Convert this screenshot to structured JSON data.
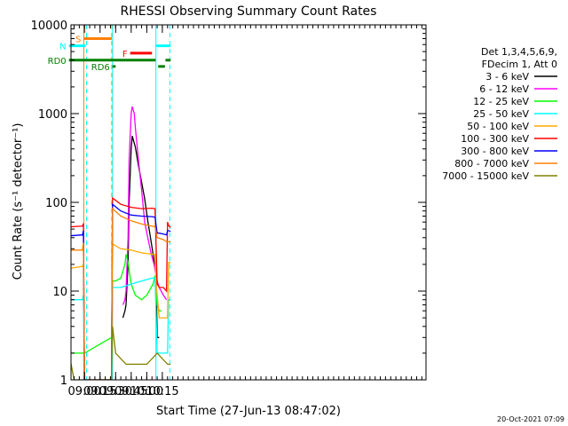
{
  "chart_data": {
    "type": "line",
    "title": "RHESSI Observing Summary Count Rates",
    "xlabel": "Start Time (27-Jun-13 08:47:02)",
    "ylabel": "Count Rate (s⁻¹ detector⁻¹)",
    "yscale": "log",
    "xlim_minutes": [
      527,
      869
    ],
    "ylim": [
      1,
      10000
    ],
    "x_ticks": [
      {
        "t": 540,
        "label": "09:00"
      },
      {
        "t": 555,
        "label": "09:15"
      },
      {
        "t": 570,
        "label": "09:30"
      },
      {
        "t": 585,
        "label": "09:45"
      },
      {
        "t": 600,
        "label": "10:00"
      },
      {
        "t": 615,
        "label": "10:15"
      }
    ],
    "y_ticks": [
      {
        "v": 1,
        "label": "1"
      },
      {
        "v": 10,
        "label": "10"
      },
      {
        "v": 100,
        "label": "100"
      },
      {
        "v": 1000,
        "label": "1000"
      },
      {
        "v": 10000,
        "label": "10000"
      }
    ],
    "legend_header": [
      "Det 1,3,4,5,6,9,",
      "FDecim 1, Att 0"
    ],
    "legend_position": "right",
    "series": [
      {
        "name": "3 - 6 keV",
        "color": "#000000",
        "points": [
          [
            577,
            5
          ],
          [
            579,
            6
          ],
          [
            580,
            7
          ],
          [
            582,
            20
          ],
          [
            583,
            100
          ],
          [
            585,
            400
          ],
          [
            586,
            560
          ],
          [
            589,
            420
          ],
          [
            592,
            260
          ],
          [
            595,
            170
          ],
          [
            598,
            110
          ],
          [
            601,
            62
          ],
          [
            604,
            37
          ],
          [
            607,
            22
          ],
          [
            609,
            15
          ],
          [
            610,
            3
          ],
          [
            612,
            3
          ]
        ]
      },
      {
        "name": "6 - 12 keV",
        "color": "#ff00ff",
        "points": [
          [
            577,
            7
          ],
          [
            579,
            8
          ],
          [
            580,
            10
          ],
          [
            582,
            40
          ],
          [
            583,
            300
          ],
          [
            585,
            1000
          ],
          [
            586,
            1200
          ],
          [
            588,
            1000
          ],
          [
            589,
            700
          ],
          [
            592,
            300
          ],
          [
            595,
            140
          ],
          [
            598,
            60
          ],
          [
            601,
            40
          ],
          [
            604,
            27
          ],
          [
            607,
            20
          ],
          [
            609,
            15
          ],
          [
            610,
            13
          ],
          [
            612,
            11
          ],
          [
            616,
            9
          ],
          [
            619,
            8
          ]
        ]
      },
      {
        "name": "12 - 25 keV",
        "color": "#00ff00",
        "points": [
          [
            525,
            2
          ],
          [
            540,
            2
          ],
          [
            566,
            3
          ],
          [
            567,
            13
          ],
          [
            570,
            13
          ],
          [
            575,
            14
          ],
          [
            579,
            20
          ],
          [
            580,
            26
          ],
          [
            582,
            21
          ],
          [
            585,
            12
          ],
          [
            589,
            9
          ],
          [
            595,
            8
          ],
          [
            600,
            9
          ],
          [
            606,
            12
          ],
          [
            608,
            15
          ],
          [
            610,
            7
          ],
          [
            612,
            6
          ],
          [
            614,
            6
          ]
        ]
      },
      {
        "name": "25 - 50 keV",
        "color": "#00ffff",
        "points": [
          [
            525,
            8
          ],
          [
            538,
            8
          ],
          [
            539,
            9
          ],
          [
            540,
            1
          ],
          [
            566,
            1
          ],
          [
            567,
            11
          ],
          [
            570,
            11
          ],
          [
            575,
            11
          ],
          [
            585,
            12
          ],
          [
            595,
            13
          ],
          [
            605,
            14
          ],
          [
            608,
            14
          ],
          [
            610,
            2
          ],
          [
            612,
            2
          ],
          [
            620,
            2
          ],
          [
            621,
            8
          ],
          [
            623,
            8
          ]
        ]
      },
      {
        "name": "50 - 100 keV",
        "color": "#ffaa00",
        "points": [
          [
            525,
            18
          ],
          [
            538,
            19
          ],
          [
            539,
            20
          ],
          [
            540,
            1
          ],
          [
            566,
            1
          ],
          [
            567,
            34
          ],
          [
            575,
            30
          ],
          [
            585,
            29
          ],
          [
            595,
            27
          ],
          [
            605,
            26
          ],
          [
            608,
            26
          ],
          [
            609,
            12
          ],
          [
            612,
            5
          ],
          [
            615,
            5
          ],
          [
            617,
            5
          ],
          [
            619,
            5
          ],
          [
            620,
            5
          ],
          [
            621,
            21
          ],
          [
            623,
            21
          ]
        ]
      },
      {
        "name": "100 - 300 keV",
        "color": "#ff0000",
        "points": [
          [
            525,
            53
          ],
          [
            538,
            54
          ],
          [
            539,
            58
          ],
          [
            540,
            1
          ],
          [
            566,
            1
          ],
          [
            567,
            112
          ],
          [
            575,
            95
          ],
          [
            585,
            88
          ],
          [
            595,
            85
          ],
          [
            605,
            86
          ],
          [
            608,
            85
          ],
          [
            610,
            12
          ],
          [
            612,
            11
          ],
          [
            616,
            11
          ],
          [
            619,
            10
          ],
          [
            620,
            60
          ],
          [
            621,
            55
          ],
          [
            623,
            52
          ]
        ]
      },
      {
        "name": "300 - 800 keV",
        "color": "#0000ff",
        "points": [
          [
            525,
            42
          ],
          [
            538,
            43
          ],
          [
            539,
            48
          ],
          [
            540,
            1
          ],
          [
            566,
            1
          ],
          [
            567,
            95
          ],
          [
            575,
            80
          ],
          [
            585,
            72
          ],
          [
            595,
            70
          ],
          [
            605,
            69
          ],
          [
            608,
            68
          ],
          [
            610,
            45
          ],
          [
            612,
            45
          ],
          [
            616,
            44
          ],
          [
            619,
            43
          ],
          [
            620,
            48
          ],
          [
            621,
            48
          ],
          [
            623,
            47
          ]
        ]
      },
      {
        "name": "800 - 7000 keV",
        "color": "#ff8000",
        "points": [
          [
            525,
            29
          ],
          [
            538,
            29
          ],
          [
            539,
            35
          ],
          [
            540,
            1
          ],
          [
            566,
            1
          ],
          [
            567,
            85
          ],
          [
            575,
            70
          ],
          [
            585,
            62
          ],
          [
            595,
            57
          ],
          [
            605,
            54
          ],
          [
            608,
            53
          ],
          [
            610,
            40
          ],
          [
            616,
            38
          ],
          [
            619,
            36
          ],
          [
            620,
            36
          ],
          [
            623,
            36
          ]
        ]
      },
      {
        "name": "7000 - 15000 keV",
        "color": "#808000",
        "points": [
          [
            525,
            2
          ],
          [
            530,
            1
          ],
          [
            540,
            1
          ],
          [
            566,
            1
          ],
          [
            567,
            4
          ],
          [
            570,
            2
          ],
          [
            580,
            1.5
          ],
          [
            590,
            1.5
          ],
          [
            600,
            1.5
          ],
          [
            610,
            2
          ],
          [
            620,
            1.5
          ],
          [
            623,
            1.5
          ]
        ]
      }
    ],
    "vertical_lines": [
      {
        "t": 525,
        "color": "#00ffff",
        "dash": false
      },
      {
        "t": 539.3,
        "color": "#ff8000",
        "dash": false
      },
      {
        "t": 542,
        "color": "#00ffff",
        "dash": true
      },
      {
        "t": 566.3,
        "color": "#ff8000",
        "dash": true
      },
      {
        "t": 567,
        "color": "#00ffff",
        "dash": false
      },
      {
        "t": 608.8,
        "color": "#00ffff",
        "dash": false
      },
      {
        "t": 622.2,
        "color": "#00ffff",
        "dash": true
      }
    ],
    "state_bars": [
      {
        "label": "S",
        "color": "#ff8000",
        "t0": 539.3,
        "t1": 566.3,
        "y": 7000
      },
      {
        "label": "N",
        "color": "#00ffff",
        "t0": 525,
        "t1": 541,
        "y": 5800
      },
      {
        "label": "",
        "color": "#00ffff",
        "t0": 608.8,
        "t1": 623,
        "y": 5800
      },
      {
        "label": "F",
        "color": "#ff0000",
        "t0": 584,
        "t1": 605,
        "y": 4800
      },
      {
        "label": "RD0",
        "color": "#008000",
        "t0": 525,
        "t1": 608.5,
        "y": 4000
      },
      {
        "label": "",
        "color": "#008000",
        "t0": 618,
        "t1": 623,
        "y": 4000
      },
      {
        "label": "RD6",
        "color": "#008000",
        "t0": 567,
        "t1": 570,
        "y": 3400
      },
      {
        "label": "",
        "color": "#008000",
        "t0": 611,
        "t1": 617.5,
        "y": 3400
      }
    ],
    "grid": false
  },
  "footer": {
    "timestamp": "20-Oct-2021 07:09"
  }
}
